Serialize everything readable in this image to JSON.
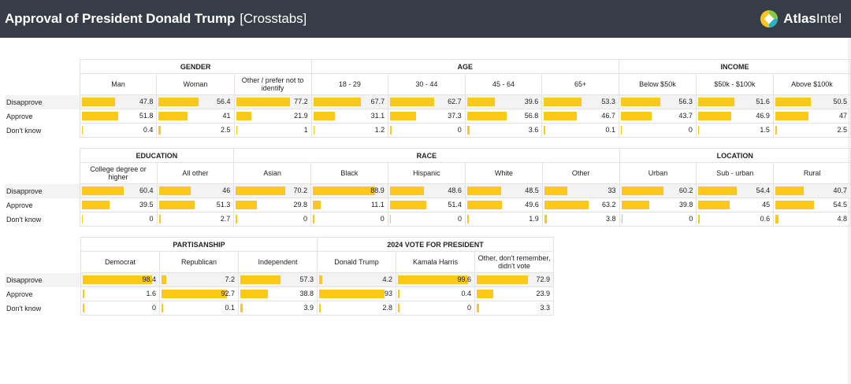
{
  "header": {
    "title": "Approval of President Donald Trump",
    "subtitle": "[Crosstabs]",
    "brand_bold": "Atlas",
    "brand_rest": "Intel"
  },
  "colors": {
    "header_bg": "#363d47",
    "bar": "#fcc919"
  },
  "chart_data": {
    "type": "table",
    "rows": [
      "Disapprove",
      "Approve",
      "Don't know"
    ],
    "value_range": [
      0,
      100
    ],
    "blocks": [
      {
        "groups": [
          {
            "name": "GENDER",
            "columns": [
              {
                "label": "Man",
                "values": [
                  47.8,
                  51.8,
                  0.4
                ]
              },
              {
                "label": "Woman",
                "values": [
                  56.4,
                  41,
                  2.5
                ]
              },
              {
                "label": "Other / prefer not to identify",
                "values": [
                  77.2,
                  21.9,
                  1
                ]
              }
            ]
          },
          {
            "name": "AGE",
            "columns": [
              {
                "label": "18 - 29",
                "values": [
                  67.7,
                  31.1,
                  1.2
                ]
              },
              {
                "label": "30 - 44",
                "values": [
                  62.7,
                  37.3,
                  0
                ]
              },
              {
                "label": "45 - 64",
                "values": [
                  39.6,
                  56.8,
                  3.6
                ]
              },
              {
                "label": "65+",
                "values": [
                  53.3,
                  46.7,
                  0.1
                ]
              }
            ]
          },
          {
            "name": "INCOME",
            "columns": [
              {
                "label": "Below $50k",
                "values": [
                  56.3,
                  43.7,
                  0
                ]
              },
              {
                "label": "$50k - $100k",
                "values": [
                  51.6,
                  46.9,
                  1.5
                ]
              },
              {
                "label": "Above $100k",
                "values": [
                  50.5,
                  47,
                  2.5
                ]
              }
            ]
          }
        ]
      },
      {
        "groups": [
          {
            "name": "EDUCATION",
            "columns": [
              {
                "label": "College degree or higher",
                "values": [
                  60.4,
                  39.5,
                  0
                ]
              },
              {
                "label": "All other",
                "values": [
                  46,
                  51.3,
                  2.7
                ]
              }
            ]
          },
          {
            "name": "RACE",
            "columns": [
              {
                "label": "Asian",
                "values": [
                  70.2,
                  29.8,
                  0
                ]
              },
              {
                "label": "Black",
                "values": [
                  88.9,
                  11.1,
                  0
                ]
              },
              {
                "label": "Hispanic",
                "values": [
                  48.6,
                  51.4,
                  0
                ]
              },
              {
                "label": "White",
                "values": [
                  48.5,
                  49.6,
                  1.9
                ]
              },
              {
                "label": "Other",
                "values": [
                  33,
                  63.2,
                  3.8
                ]
              }
            ]
          },
          {
            "name": "LOCATION",
            "columns": [
              {
                "label": "Urban",
                "values": [
                  60.2,
                  39.8,
                  0
                ]
              },
              {
                "label": "Sub - urban",
                "values": [
                  54.4,
                  45,
                  0.6
                ]
              },
              {
                "label": "Rural",
                "values": [
                  40.7,
                  54.5,
                  4.8
                ]
              }
            ]
          }
        ]
      },
      {
        "groups": [
          {
            "name": "PARTISANSHIP",
            "columns": [
              {
                "label": "Democrat",
                "values": [
                  98.4,
                  1.6,
                  0
                ]
              },
              {
                "label": "Republican",
                "values": [
                  7.2,
                  92.7,
                  0.1
                ]
              },
              {
                "label": "Independent",
                "values": [
                  57.3,
                  38.8,
                  3.9
                ]
              }
            ]
          },
          {
            "name": "2024 VOTE FOR PRESIDENT",
            "columns": [
              {
                "label": "Donald Trump",
                "values": [
                  4.2,
                  93,
                  2.8
                ]
              },
              {
                "label": "Kamala Harris",
                "values": [
                  99.6,
                  0.4,
                  0
                ]
              },
              {
                "label": "Other, don't remember, didn't vote",
                "values": [
                  72.9,
                  23.9,
                  3.3
                ]
              }
            ]
          }
        ]
      }
    ]
  }
}
